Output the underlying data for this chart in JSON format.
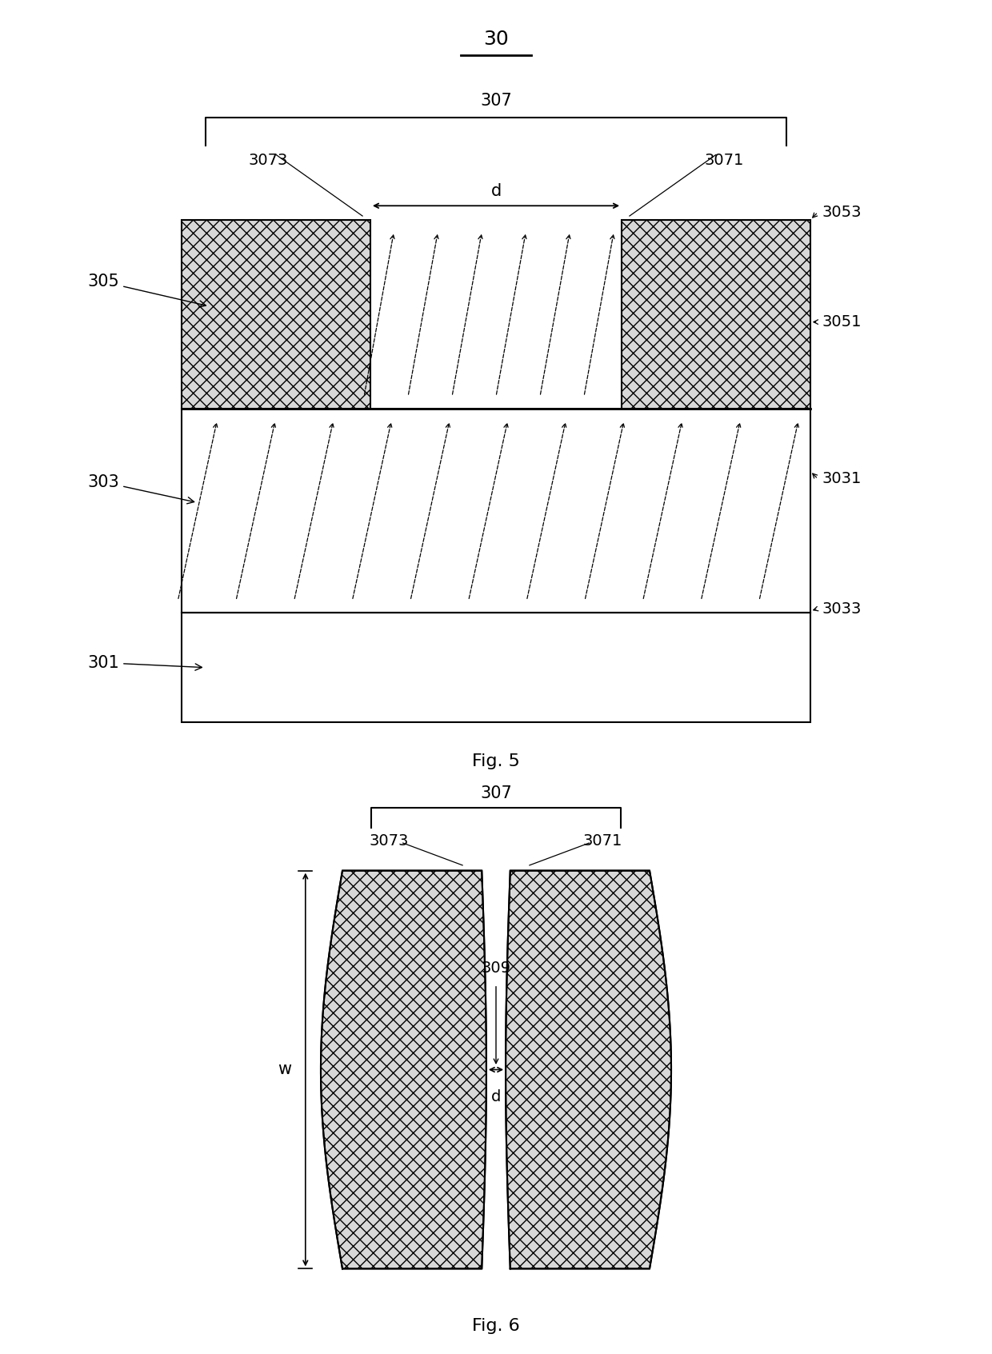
{
  "fig5": {
    "title": "30",
    "bracket_label": "307",
    "left_electrode_label": "3073",
    "right_electrode_label": "3071",
    "d_label": "d",
    "top_right_label": "3053",
    "left_block_label": "305",
    "right_block_label": "3051",
    "ferroelectric_label": "303",
    "right_ferro_label": "3031",
    "bottom_layer_label": "3033",
    "substrate_label": "301",
    "fig_label": "Fig. 5"
  },
  "fig6": {
    "bracket_label": "307",
    "left_electrode_label": "3073",
    "right_electrode_label": "3071",
    "gap_label": "309",
    "d_label": "d",
    "w_label": "w",
    "fig_label": "Fig. 6"
  },
  "hatch_pattern": "xx",
  "line_color": "#000000",
  "fill_color": "#cccccc",
  "bg_color": "#ffffff"
}
